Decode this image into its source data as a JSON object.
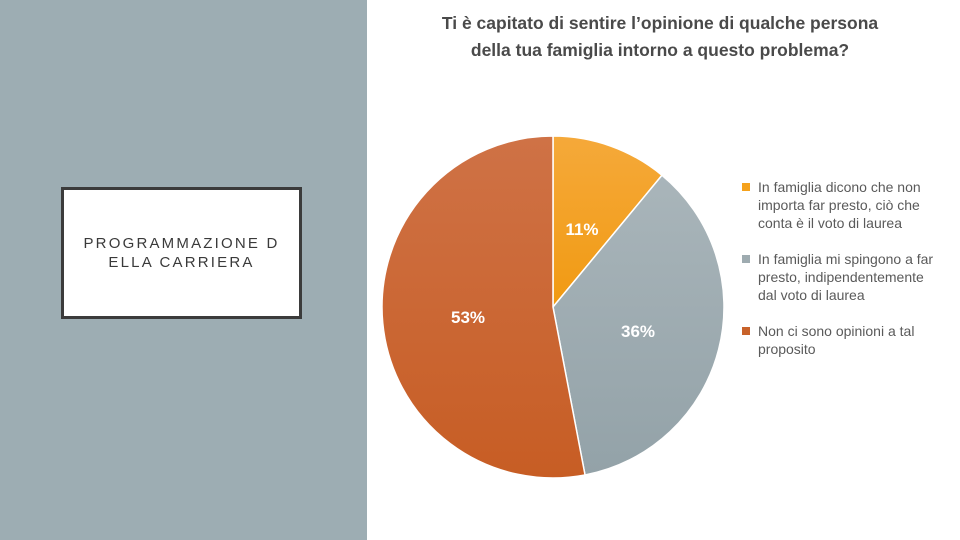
{
  "slide": {
    "section_title": "PROGRAMMAZIONE DELLA CARRIERA"
  },
  "chart_data": {
    "type": "pie",
    "title": "Ti è capitato di sentire l’opinione di qualche persona della tua famiglia intorno a questo problema?",
    "categories": [
      "In famiglia dicono che non importa far presto, ciò che conta è il voto di laurea",
      "In famiglia mi spingono a far presto, indipendentemente dal voto di laurea",
      "Non ci sono opinioni a tal proposito"
    ],
    "values": [
      11,
      36,
      53
    ],
    "labels": [
      "11%",
      "36%",
      "53%"
    ],
    "colors": [
      "#f5a21c",
      "#9eabb0",
      "#c8622a"
    ],
    "legend_position": "right"
  }
}
